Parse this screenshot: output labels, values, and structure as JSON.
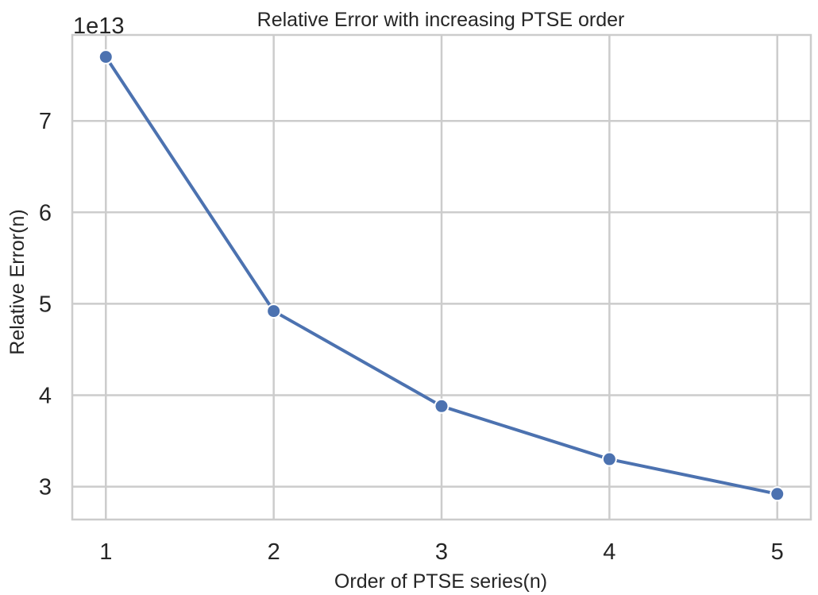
{
  "chart_data": {
    "type": "line",
    "title": "Relative Error with increasing PTSE order",
    "xlabel": "Order of PTSE series(n)",
    "ylabel": "Relative Error(n)",
    "y_offset_label": "1e13",
    "x": [
      1,
      2,
      3,
      4,
      5
    ],
    "x_ticks": [
      1,
      2,
      3,
      4,
      5
    ],
    "x_tick_labels": [
      "1",
      "2",
      "3",
      "4",
      "5"
    ],
    "y_ticks": [
      3,
      4,
      5,
      6,
      7
    ],
    "y_tick_labels": [
      "3",
      "4",
      "5",
      "6",
      "7"
    ],
    "series": [
      {
        "values": [
          7.7,
          4.92,
          3.88,
          3.3,
          2.92
        ]
      }
    ],
    "xlim": [
      0.8,
      5.2
    ],
    "ylim": [
      2.64,
      7.94
    ],
    "grid": true,
    "colors": {
      "line": "#4c72b0",
      "grid": "#cccccc",
      "spine": "#cccccc",
      "marker_edge": "#ffffff"
    }
  }
}
